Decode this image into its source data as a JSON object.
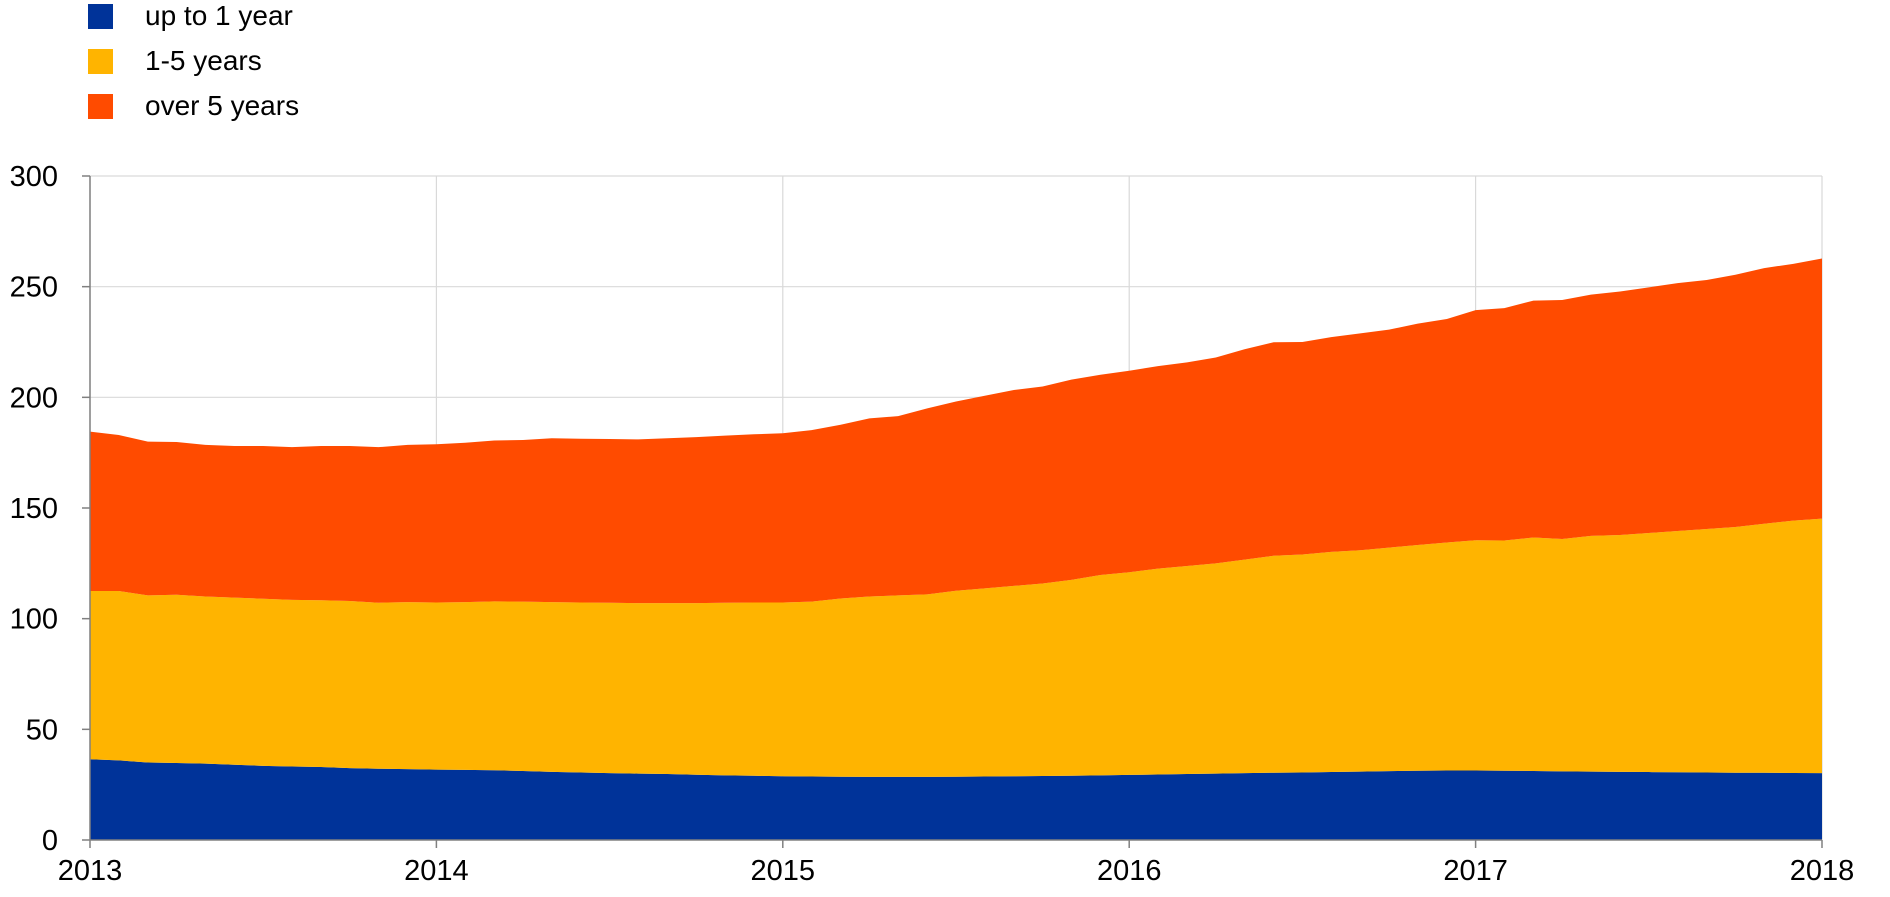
{
  "chart_data": {
    "type": "area",
    "stacked": true,
    "title": "",
    "xlabel": "",
    "ylabel": "",
    "ylim": [
      0,
      300
    ],
    "y_ticks": [
      "0",
      "50",
      "100",
      "150",
      "200",
      "250",
      "300"
    ],
    "x_range": [
      2013,
      2018
    ],
    "x_ticks": [
      "2013",
      "2014",
      "2015",
      "2016",
      "2017",
      "2018"
    ],
    "grid": true,
    "legend_position": "top-left",
    "x": [
      2013.0,
      2013.083,
      2013.167,
      2013.25,
      2013.333,
      2013.417,
      2013.5,
      2013.583,
      2013.667,
      2013.75,
      2013.833,
      2013.917,
      2014.0,
      2014.083,
      2014.167,
      2014.25,
      2014.333,
      2014.417,
      2014.5,
      2014.583,
      2014.667,
      2014.75,
      2014.833,
      2014.917,
      2015.0,
      2015.083,
      2015.167,
      2015.25,
      2015.333,
      2015.417,
      2015.5,
      2015.583,
      2015.667,
      2015.75,
      2015.833,
      2015.917,
      2016.0,
      2016.083,
      2016.167,
      2016.25,
      2016.333,
      2016.417,
      2016.5,
      2016.583,
      2016.667,
      2016.75,
      2016.833,
      2016.917,
      2017.0,
      2017.083,
      2017.167,
      2017.25,
      2017.333,
      2017.417,
      2017.5,
      2017.583,
      2017.667,
      2017.75,
      2017.833,
      2017.917,
      2018.0
    ],
    "series": [
      {
        "name": "up to 1 year",
        "color": "#003399",
        "values": [
          36.5,
          36,
          35,
          34.8,
          34.5,
          34,
          33.5,
          33.2,
          33,
          32.5,
          32.2,
          32,
          31.8,
          31.7,
          31.5,
          31.2,
          30.8,
          30.5,
          30.2,
          30,
          29.8,
          29.5,
          29.2,
          29,
          28.8,
          28.7,
          28.6,
          28.5,
          28.5,
          28.5,
          28.6,
          28.7,
          28.8,
          28.9,
          29,
          29.2,
          29.4,
          29.6,
          29.8,
          30,
          30.2,
          30.4,
          30.5,
          30.7,
          30.9,
          31.1,
          31.3,
          31.4,
          31.4,
          31.3,
          31.2,
          31,
          30.9,
          30.8,
          30.7,
          30.6,
          30.5,
          30.4,
          30.4,
          30.3,
          30.2
        ]
      },
      {
        "name": "1-5 years",
        "color": "#FFB400",
        "values": [
          76,
          76.5,
          75.5,
          76,
          75.5,
          75.5,
          75.5,
          75.3,
          75.3,
          75.5,
          75,
          75.5,
          75.5,
          75.8,
          76.3,
          76.5,
          76.7,
          76.8,
          77,
          77,
          77.2,
          77.5,
          78,
          78.3,
          78.5,
          79,
          80.5,
          81.5,
          82,
          82.5,
          84,
          85,
          86,
          87,
          88.5,
          90.5,
          91.6,
          93,
          94,
          95,
          96.5,
          98,
          98.5,
          99.5,
          100,
          101,
          102,
          103,
          104,
          104,
          105.5,
          105,
          106.5,
          107,
          108,
          109,
          110,
          111,
          112.5,
          114,
          115
        ]
      },
      {
        "name": "over 5 years",
        "color": "#FF4B00",
        "values": [
          72,
          70.5,
          69.5,
          69,
          68.5,
          68.5,
          69,
          69,
          69.7,
          70,
          70.3,
          71,
          71.5,
          72,
          72.7,
          73,
          74,
          74,
          74,
          74,
          74.5,
          75,
          75.5,
          76,
          76.5,
          77.5,
          78.5,
          80.5,
          81,
          84,
          85.5,
          87,
          88.5,
          89,
          90.5,
          90.5,
          91,
          91.5,
          92,
          93,
          95,
          96.5,
          96,
          97,
          98,
          98.5,
          100,
          101,
          104,
          105,
          107,
          108,
          109,
          110,
          111,
          112,
          112.5,
          114,
          115.5,
          116,
          117.5
        ]
      }
    ]
  }
}
